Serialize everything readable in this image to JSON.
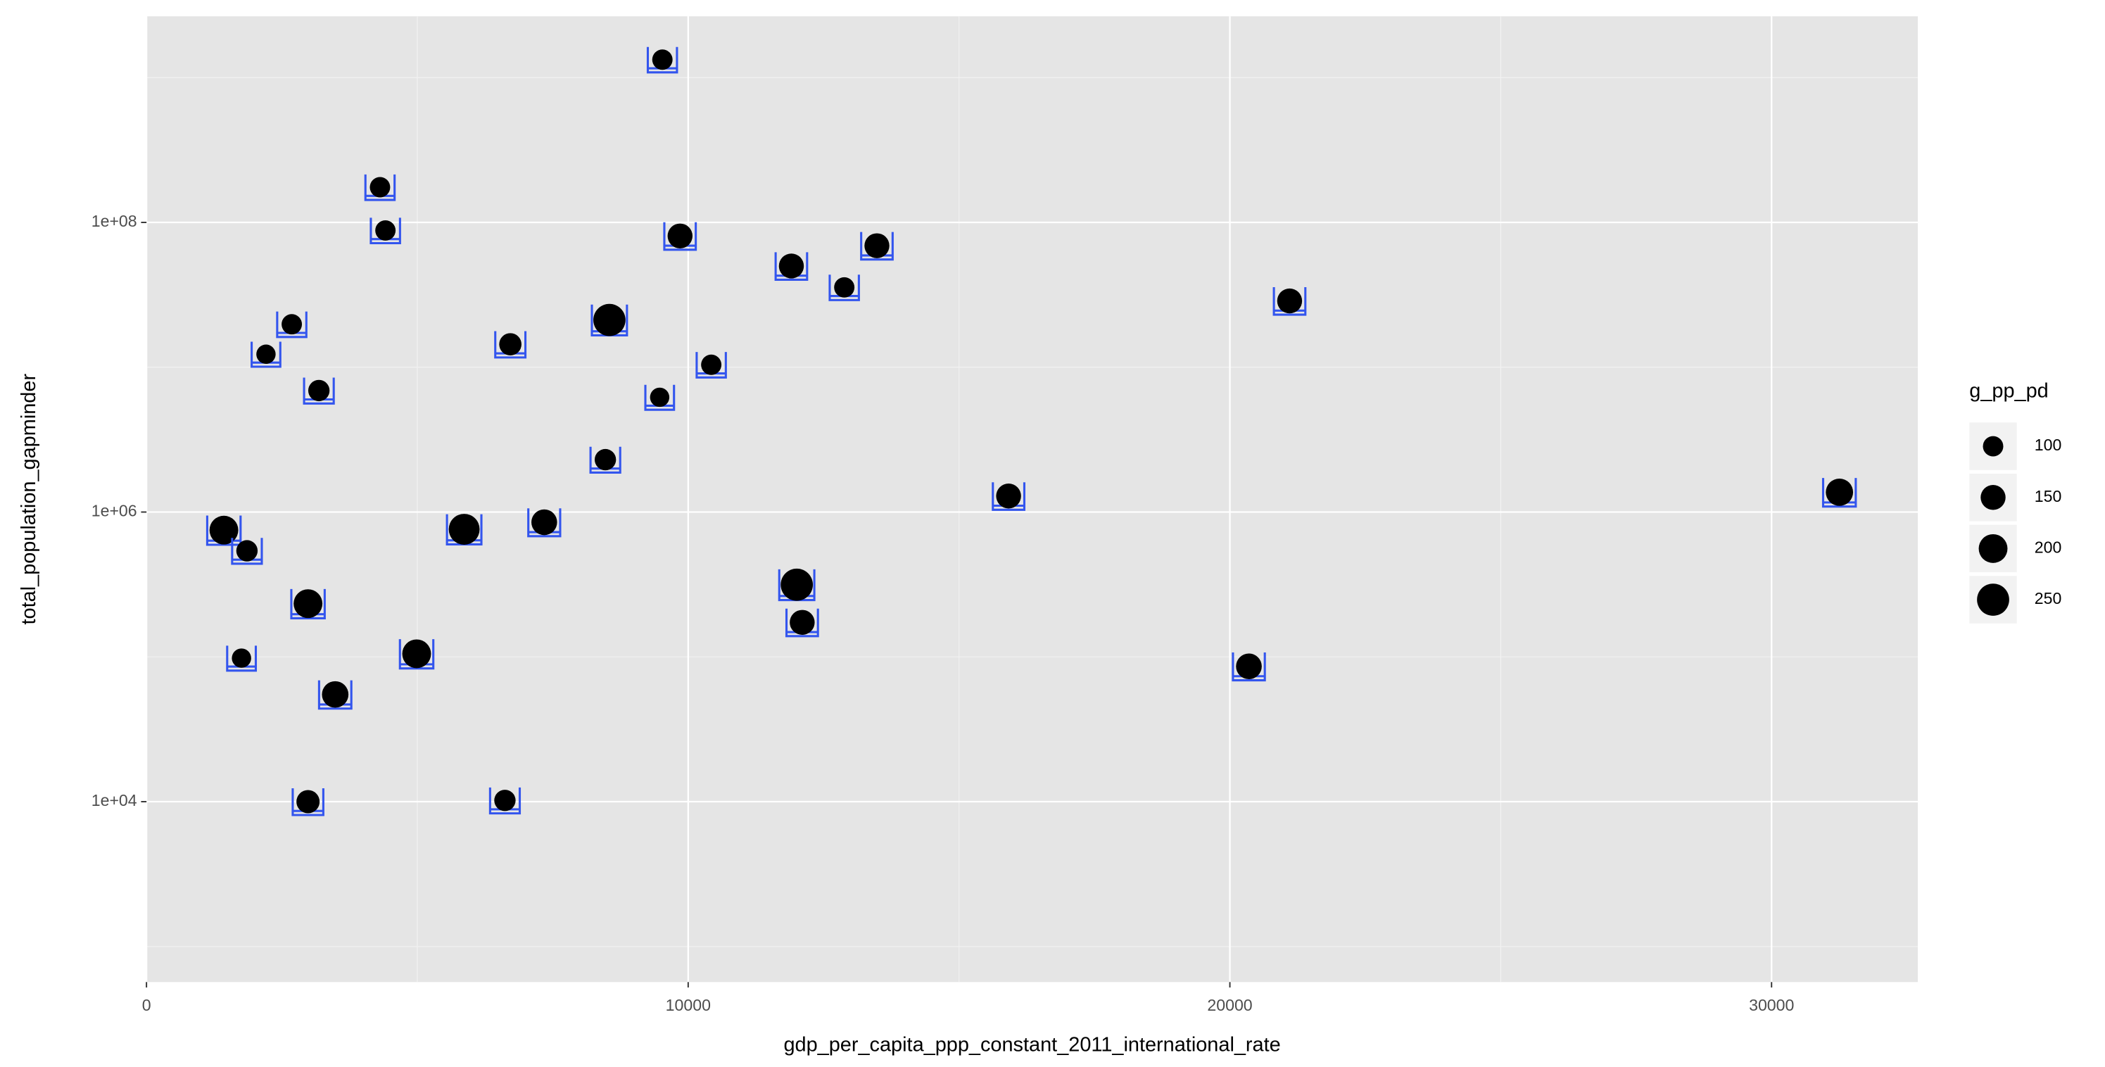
{
  "chart_data": {
    "type": "scatter",
    "x_label": "gdp_per_capita_ppp_constant_2011_international_rate",
    "y_label": "total_population_gapminder",
    "size_label": "g_pp_pd",
    "x": [
      9524,
      4311,
      4411,
      9850,
      11905,
      13484,
      12882,
      21103,
      8546,
      2682,
      2206,
      6717,
      10426,
      3183,
      9474,
      8471,
      15915,
      31253,
      1429,
      5865,
      7343,
      1855,
      12005,
      2982,
      12105,
      4987,
      1754,
      20351,
      3484,
      2982,
      6617
    ],
    "values": [
      1330000000,
      175000000,
      88000000,
      80600000,
      50000000,
      69000000,
      35600000,
      28700000,
      21200000,
      19800000,
      12300000,
      14400000,
      10400000,
      6900000,
      6200000,
      2300000,
      1290000,
      1370000,
      750000,
      760000,
      850000,
      540000,
      315000,
      233000,
      173000,
      105000,
      98000,
      86000,
      55000,
      10000,
      10200
    ],
    "sizes": [
      100,
      100,
      100,
      150,
      150,
      150,
      100,
      150,
      250,
      100,
      90,
      120,
      100,
      110,
      90,
      110,
      150,
      180,
      200,
      230,
      160,
      110,
      250,
      200,
      150,
      200,
      90,
      160,
      170,
      130,
      110
    ],
    "size_breaks": [
      100,
      150,
      200,
      250
    ],
    "xlim": [
      0,
      32700
    ],
    "ylim": [
      568,
      2650000000
    ],
    "y_log": true,
    "xticks": [
      0,
      10000,
      20000,
      30000
    ],
    "yticks": [
      {
        "value": 10000,
        "label": "1e+04"
      },
      {
        "value": 1000000,
        "label": "1e+06"
      },
      {
        "value": 100000000,
        "label": "1e+08"
      }
    ],
    "point_color": "#000000",
    "icon_color": "#3355ee",
    "grid": true
  }
}
